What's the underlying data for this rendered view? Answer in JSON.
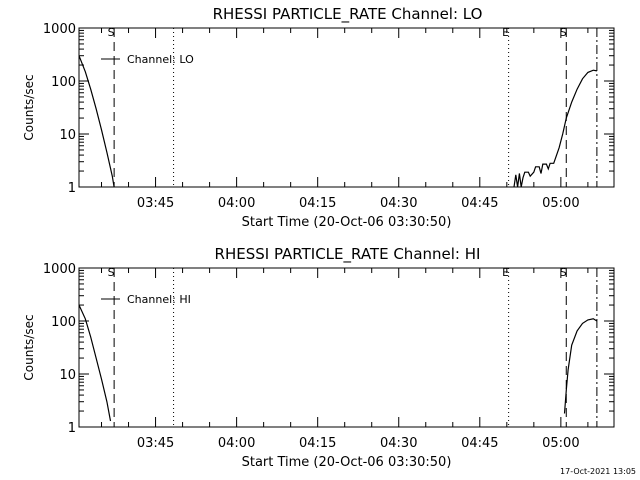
{
  "chart_data": [
    {
      "type": "line",
      "title": "RHESSI PARTICLE_RATE Channel: LO",
      "xlabel": "Start Time (20-Oct-06 03:30:50)",
      "ylabel": "Counts/sec",
      "x_tick_labels": [
        "03:45",
        "04:00",
        "04:15",
        "04:30",
        "04:45",
        "05:00"
      ],
      "y_tick_labels": [
        "1",
        "10",
        "100",
        "1000"
      ],
      "y_scale": "log",
      "xlim": [
        "03:30:50",
        "05:09:50"
      ],
      "ylim": [
        1,
        1000
      ],
      "legend": [
        "Channel: LO"
      ],
      "legend_position": "top-left",
      "markers": [
        {
          "label": "S",
          "time": "03:37:20",
          "style": "dashed"
        },
        {
          "time": "03:48:20",
          "style": "dotted"
        },
        {
          "label": "E",
          "time": "04:50:20",
          "style": "dotted"
        },
        {
          "label": "S",
          "time": "05:01:00",
          "style": "dashed"
        },
        {
          "time": "05:06:40",
          "style": "dash-dot"
        }
      ],
      "series": [
        {
          "name": "Channel: LO",
          "segments": [
            [
              [
                "03:30:50",
                300
              ],
              [
                "03:32:00",
                150
              ],
              [
                "03:33:00",
                70
              ],
              [
                "03:34:00",
                30
              ],
              [
                "03:35:00",
                12
              ],
              [
                "03:36:00",
                4.5
              ],
              [
                "03:37:00",
                1.6
              ],
              [
                "03:37:20",
                1
              ]
            ],
            [
              [
                "04:51:20",
                1
              ],
              [
                "04:51:40",
                1.7
              ],
              [
                "04:52:00",
                1
              ],
              [
                "04:52:20",
                1.8
              ],
              [
                "04:52:40",
                1
              ],
              [
                "04:53:00",
                1.5
              ],
              [
                "04:53:20",
                1.9
              ],
              [
                "04:54:00",
                1.9
              ],
              [
                "04:54:20",
                1.6
              ],
              [
                "04:55:00",
                1.9
              ],
              [
                "04:55:20",
                2.4
              ],
              [
                "04:56:00",
                2.4
              ],
              [
                "04:56:20",
                1.8
              ],
              [
                "04:56:40",
                2.7
              ],
              [
                "04:57:20",
                2.7
              ],
              [
                "04:57:40",
                2.2
              ],
              [
                "04:58:00",
                2.8
              ],
              [
                "04:58:40",
                2.8
              ],
              [
                "04:59:00",
                3.5
              ],
              [
                "04:59:40",
                5.5
              ],
              [
                "05:00:20",
                10
              ],
              [
                "05:01:00",
                20
              ],
              [
                "05:02:00",
                40
              ],
              [
                "05:03:00",
                70
              ],
              [
                "05:04:00",
                110
              ],
              [
                "05:05:00",
                145
              ],
              [
                "05:06:00",
                160
              ],
              [
                "05:06:40",
                155
              ]
            ]
          ]
        }
      ]
    },
    {
      "type": "line",
      "title": "RHESSI PARTICLE_RATE Channel: HI",
      "xlabel": "Start Time (20-Oct-06 03:30:50)",
      "ylabel": "Counts/sec",
      "x_tick_labels": [
        "03:45",
        "04:00",
        "04:15",
        "04:30",
        "04:45",
        "05:00"
      ],
      "y_tick_labels": [
        "1",
        "10",
        "100",
        "1000"
      ],
      "y_scale": "log",
      "xlim": [
        "03:30:50",
        "05:09:50"
      ],
      "ylim": [
        1,
        1000
      ],
      "legend": [
        "Channel: HI"
      ],
      "legend_position": "top-left",
      "markers": [
        {
          "label": "S",
          "time": "03:37:20",
          "style": "dashed"
        },
        {
          "time": "03:48:20",
          "style": "dotted"
        },
        {
          "label": "E",
          "time": "04:50:20",
          "style": "dotted"
        },
        {
          "label": "S",
          "time": "05:01:00",
          "style": "dashed"
        },
        {
          "time": "05:06:40",
          "style": "dash-dot"
        }
      ],
      "series": [
        {
          "name": "Channel: HI",
          "segments": [
            [
              [
                "03:30:50",
                200
              ],
              [
                "03:32:00",
                110
              ],
              [
                "03:33:00",
                50
              ],
              [
                "03:34:00",
                20
              ],
              [
                "03:35:00",
                8
              ],
              [
                "03:36:00",
                3
              ],
              [
                "03:36:40",
                1.3
              ]
            ],
            [
              [
                "05:00:40",
                1.8
              ],
              [
                "05:01:00",
                5
              ],
              [
                "05:01:20",
                12
              ],
              [
                "05:02:00",
                35
              ],
              [
                "05:03:00",
                65
              ],
              [
                "05:04:00",
                90
              ],
              [
                "05:05:00",
                105
              ],
              [
                "05:06:00",
                110
              ],
              [
                "05:06:40",
                100
              ]
            ]
          ]
        }
      ]
    }
  ],
  "footer": {
    "timestamp": "17-Oct-2021 13:05"
  }
}
